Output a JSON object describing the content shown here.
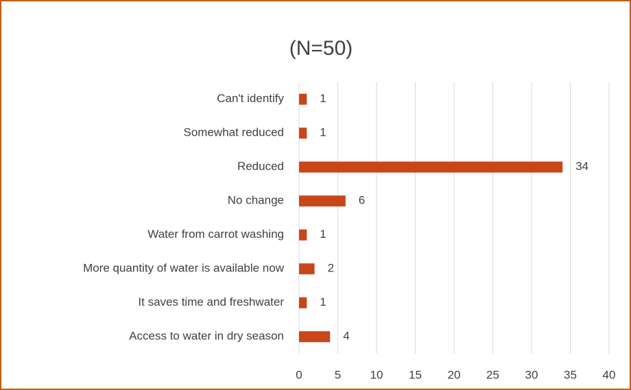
{
  "chart_data": {
    "type": "hbar",
    "title": "(N=50)",
    "categories": [
      "Can't identify",
      "Somewhat reduced",
      "Reduced",
      "No change",
      "Water from carrot washing",
      "More quantity of water is available now",
      "It saves time and freshwater",
      "Access to water in dry season"
    ],
    "values": [
      1,
      1,
      34,
      6,
      1,
      2,
      1,
      4
    ],
    "color": "#c9461a",
    "xlim": [
      0,
      40
    ],
    "xticks": [
      0,
      5,
      10,
      15,
      20,
      25,
      30,
      35,
      40
    ],
    "grid": true
  }
}
